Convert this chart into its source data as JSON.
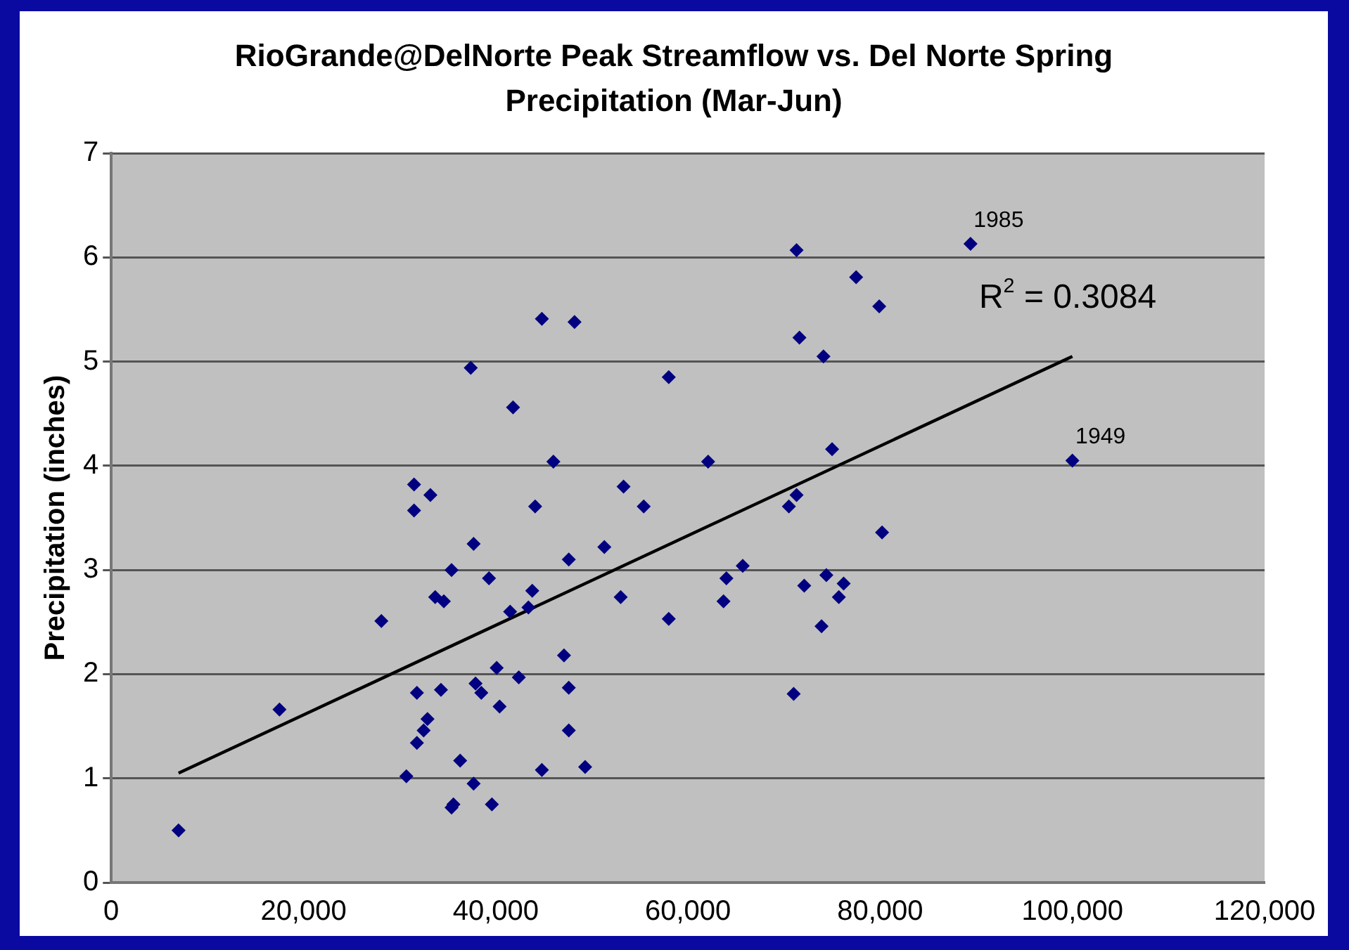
{
  "chart_data": {
    "type": "scatter",
    "title": "RioGrande@DelNorte Peak Streamflow vs. Del Norte Spring Precipitation (Mar-Jun)",
    "ylabel": "Precipitation (inches)",
    "xlim": [
      0,
      120000
    ],
    "xticks": [
      0,
      {
        "value": 20000,
        "label": "20,000"
      },
      {
        "value": 40000,
        "label": "40,000"
      },
      {
        "value": 60000,
        "label": "60,000"
      },
      {
        "value": 80000,
        "label": "80,000"
      },
      {
        "value": 100000,
        "label": "100,000"
      },
      {
        "value": 120000,
        "label": "120,000"
      }
    ],
    "ylim": [
      0,
      7
    ],
    "yticks": [
      0,
      1,
      2,
      3,
      4,
      5,
      6,
      7
    ],
    "grid": "y",
    "legend": false,
    "marker": "diamond",
    "series": [
      {
        "color": "#000080",
        "x": [
          7000,
          17500,
          28100,
          30700,
          31500,
          31500,
          33200,
          31800,
          32900,
          32500,
          31800,
          33700,
          34600,
          34300,
          35400,
          36300,
          35600,
          35400,
          37400,
          37700,
          39300,
          37900,
          38500,
          37700,
          39600,
          40100,
          40400,
          41800,
          41500,
          42400,
          43400,
          43800,
          44100,
          44800,
          44800,
          46000,
          47600,
          47100,
          47600,
          47600,
          48200,
          49300,
          51300,
          53300,
          53000,
          55400,
          58000,
          58000,
          62100,
          63700,
          64000,
          65700,
          71300,
          71600,
          71000,
          70500,
          71300,
          72100,
          74100,
          74400,
          73900,
          75000,
          75700,
          76200,
          77500,
          79900,
          80200,
          89400,
          100000
        ],
        "values": [
          0.5,
          1.66,
          2.51,
          1.02,
          3.82,
          3.57,
          3.72,
          1.82,
          1.57,
          1.46,
          1.34,
          2.74,
          2.7,
          1.85,
          3.0,
          1.17,
          0.75,
          0.72,
          4.94,
          3.25,
          2.92,
          1.91,
          1.82,
          0.95,
          0.75,
          2.06,
          1.69,
          4.56,
          2.6,
          1.97,
          2.64,
          2.8,
          3.61,
          5.41,
          1.08,
          4.04,
          3.1,
          2.18,
          1.87,
          1.46,
          5.38,
          1.11,
          3.22,
          3.8,
          2.74,
          3.61,
          4.85,
          2.53,
          4.04,
          2.7,
          2.92,
          3.04,
          6.07,
          5.23,
          1.81,
          3.61,
          3.72,
          2.85,
          5.05,
          2.95,
          2.46,
          4.16,
          2.74,
          2.87,
          5.81,
          5.53,
          3.36,
          6.13,
          4.05
        ]
      },
      {
        "type": "line",
        "color": "#000000",
        "marker": "none",
        "x": [
          7000,
          100000
        ],
        "values": [
          1.05,
          5.05
        ]
      }
    ],
    "annotations": [
      {
        "text": "1985",
        "x": 89400,
        "y": 6.13
      },
      {
        "text": "1949",
        "x": 100000,
        "y": 4.05
      },
      "R$^{2}$ = 0.3084"
    ]
  }
}
